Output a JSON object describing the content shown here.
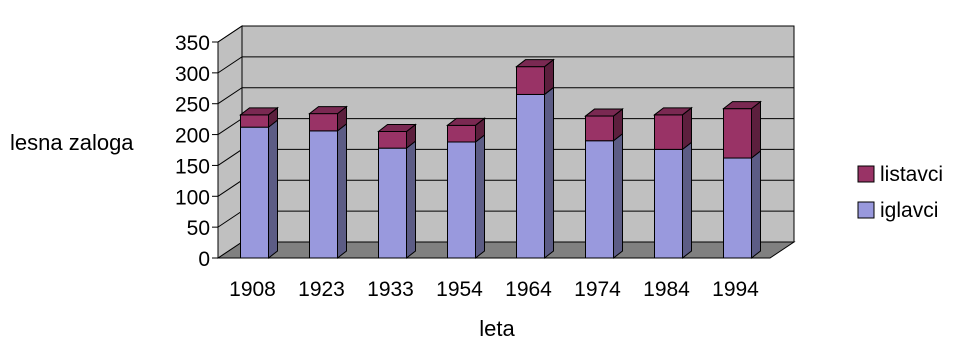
{
  "chart_data": {
    "type": "bar",
    "stacked": true,
    "three_d": true,
    "categories": [
      "1908",
      "1923",
      "1933",
      "1954",
      "1964",
      "1974",
      "1984",
      "1994"
    ],
    "series": [
      {
        "name": "iglavci",
        "values": [
          212,
          206,
          178,
          188,
          265,
          190,
          176,
          162
        ],
        "color": "#9999dd"
      },
      {
        "name": "listavci",
        "values": [
          20,
          28,
          27,
          27,
          45,
          40,
          56,
          80
        ],
        "color": "#993366"
      }
    ],
    "xlabel": "leta",
    "ylabel": "lesna zaloga",
    "ylim": [
      0,
      350
    ],
    "yticks": [
      0,
      50,
      100,
      150,
      200,
      250,
      300,
      350
    ],
    "grid": true,
    "legend_position": "right",
    "legend_order": [
      "listavci",
      "iglavci"
    ],
    "colors": {
      "wall": "#c0c0c0",
      "floor": "#808080",
      "grid": "#000000"
    }
  }
}
